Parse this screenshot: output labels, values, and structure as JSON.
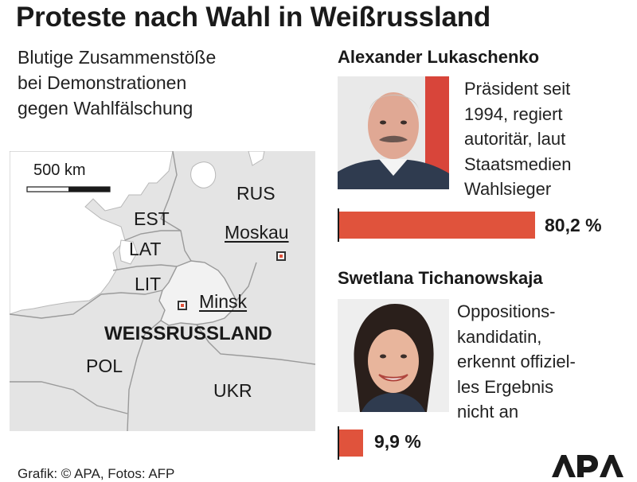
{
  "title": "Proteste nach Wahl in Weißrussland",
  "subtitle_lines": [
    "Blutige Zusammenstöße",
    "bei Demonstrationen",
    "gegen Wahlfälschung"
  ],
  "map": {
    "scale_label": "500 km",
    "labels": {
      "rus": "RUS",
      "est": "EST",
      "lat": "LAT",
      "lit": "LIT",
      "pol": "POL",
      "ukr": "UKR",
      "belarus": "WEISSRUSSLAND",
      "moskau": "Moskau",
      "minsk": "Minsk"
    },
    "colors": {
      "land": "#e4e4e4",
      "sea": "#ffffff",
      "belarus": "#f2f2f2",
      "marker": "#e0533c"
    }
  },
  "candidates": [
    {
      "name": "Alexander Lukaschenko",
      "description_lines": [
        "Präsident seit",
        "1994, regiert",
        "autoritär, laut",
        "Staatsmedien",
        "Wahlsieger"
      ],
      "percent_label": "80,2 %",
      "percent_value": 80.2,
      "photo_icon": "portrait-man-icon"
    },
    {
      "name": "Swetlana Tichanowskaja",
      "description_lines": [
        "Oppositions-",
        "kandidatin,",
        "erkennt offiziel-",
        "les Ergebnis",
        "nicht an"
      ],
      "percent_label": "9,9 %",
      "percent_value": 9.9,
      "photo_icon": "portrait-woman-icon"
    }
  ],
  "bar_color": "#e0533c",
  "credit": "Grafik: © APA, Fotos: AFP",
  "logo_text": "APA"
}
